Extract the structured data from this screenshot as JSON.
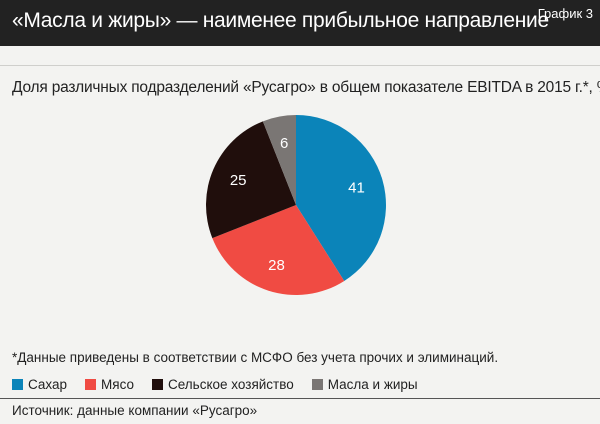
{
  "header": {
    "title": "«Масла и жиры» — наименее прибыльное направление",
    "tag": "График 3"
  },
  "chart_data": {
    "type": "pie",
    "title": "Доля различных подразделений «Русагро» в общем показателе EBITDA в 2015 г.*, %",
    "slices": [
      {
        "name": "Сахар",
        "value": 41,
        "color": "#0b84b9"
      },
      {
        "name": "Мясо",
        "value": 28,
        "color": "#f04b43"
      },
      {
        "name": "Сельское хозяйство",
        "value": 25,
        "color": "#200e0c"
      },
      {
        "name": "Масла и жиры",
        "value": 6,
        "color": "#7a7674"
      }
    ],
    "data_labels": [
      "41",
      "28",
      "25",
      "6"
    ],
    "legend_position": "bottom"
  },
  "footer": {
    "note": "*Данные приведены в соответствии с МСФО без учета прочих и элиминаций.",
    "source": "Источник: данные компании «Русагро»"
  }
}
